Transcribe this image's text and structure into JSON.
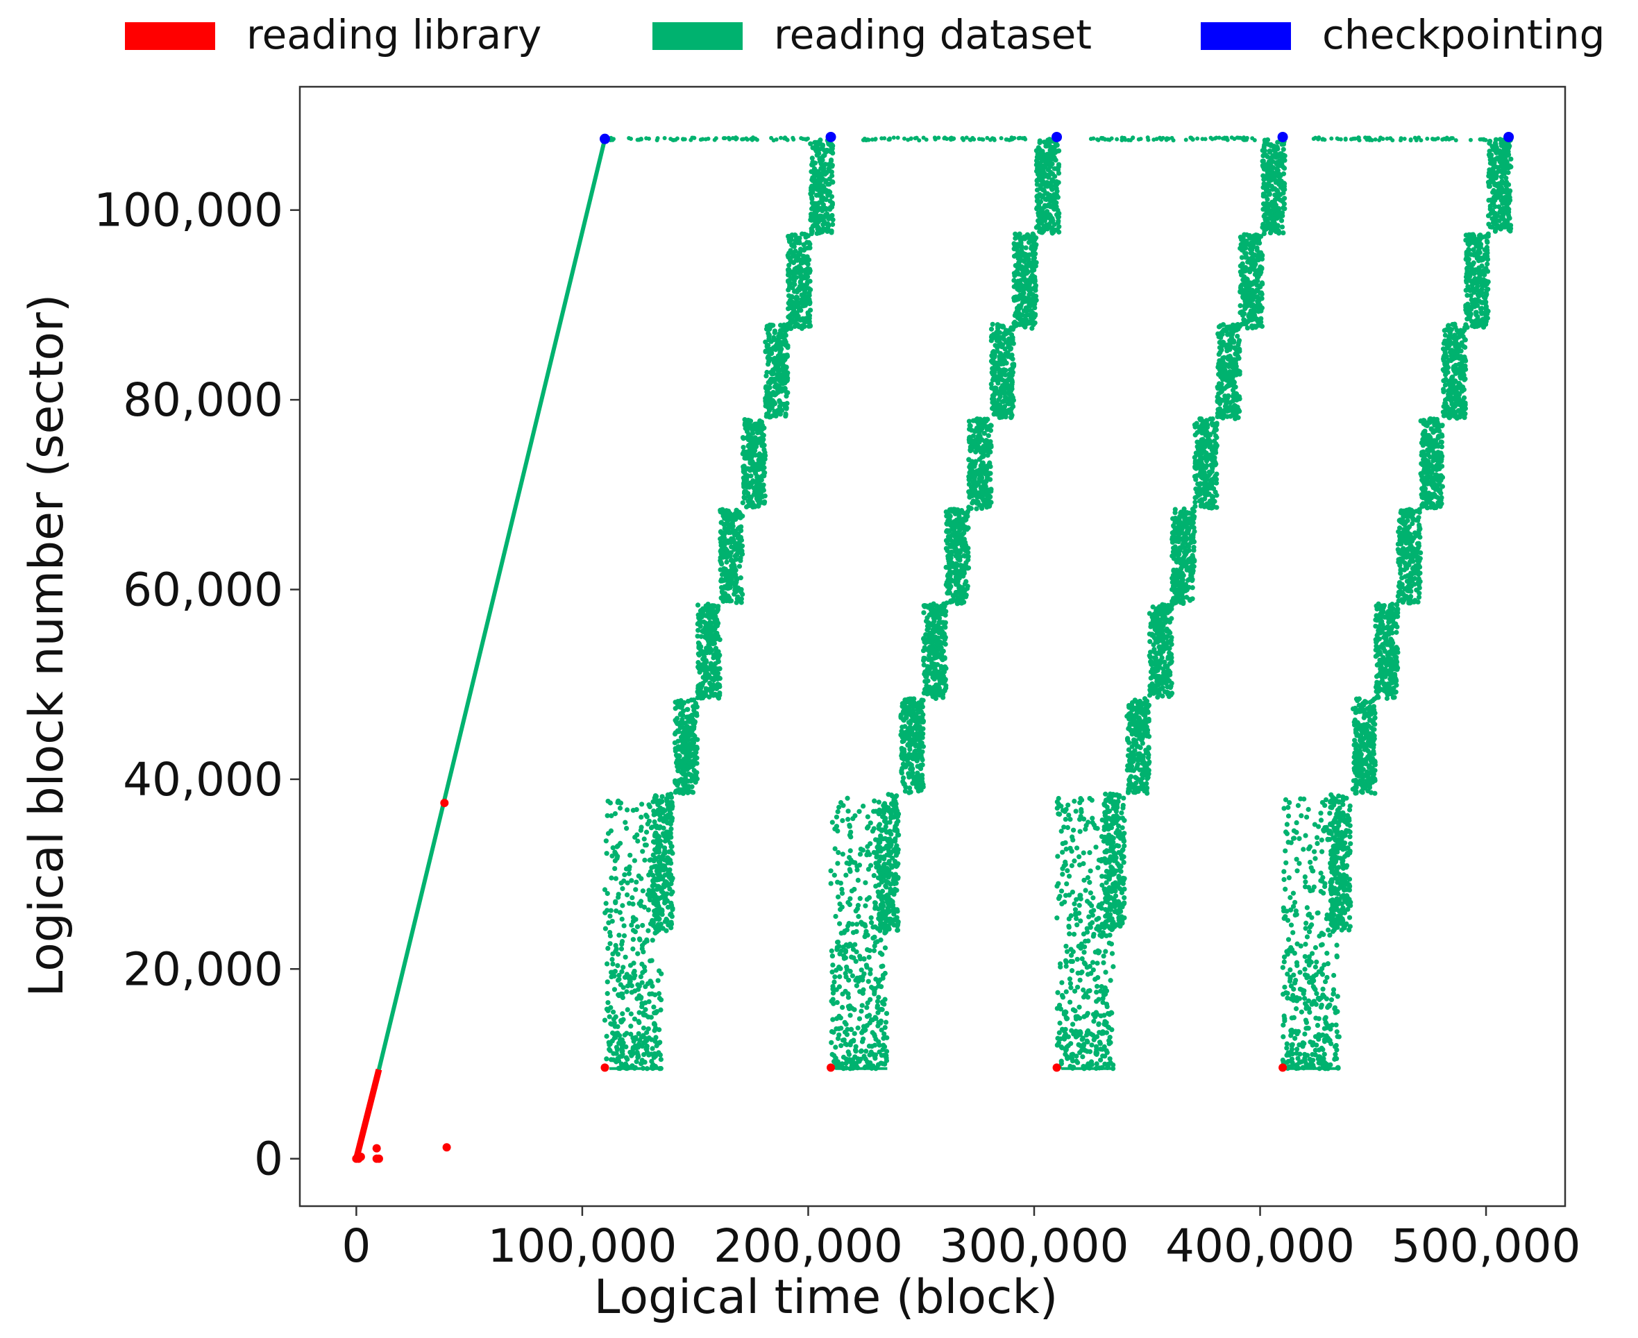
{
  "chart_data": {
    "type": "scatter",
    "title": "",
    "xlabel": "Logical time (block)",
    "ylabel": "Logical block number (sector)",
    "xlim": [
      -25000,
      535000
    ],
    "ylim": [
      -5000,
      113000
    ],
    "x_ticks": [
      0,
      100000,
      200000,
      300000,
      400000,
      500000
    ],
    "x_tick_labels": [
      "0",
      "100,000",
      "200,000",
      "300,000",
      "400,000",
      "500,000"
    ],
    "y_ticks": [
      0,
      20000,
      40000,
      60000,
      80000,
      100000
    ],
    "y_tick_labels": [
      "0",
      "20,000",
      "40,000",
      "60,000",
      "80,000",
      "100,000"
    ],
    "grid": false,
    "legend": {
      "placement": "top",
      "ncol": 3
    },
    "colors": {
      "reading library": "#ff0000",
      "reading dataset": "#00b26f",
      "checkpointing": "#0000ff"
    },
    "series": [
      {
        "name": "reading library",
        "color": "#ff0000",
        "segments": [
          {
            "x": [
              0,
              10000
            ],
            "y": [
              0,
              9400
            ]
          }
        ],
        "points": [
          [
            0,
            0
          ],
          [
            1000,
            0
          ],
          [
            2000,
            200
          ],
          [
            9000,
            0
          ],
          [
            10000,
            0
          ],
          [
            9000,
            1100
          ],
          [
            40000,
            1200
          ],
          [
            39000,
            37500
          ],
          [
            110000,
            9600
          ],
          [
            210000,
            9600
          ],
          [
            310000,
            9600
          ],
          [
            410000,
            9600
          ]
        ]
      },
      {
        "name": "reading dataset",
        "color": "#00b26f",
        "segments": [
          {
            "x": [
              10000,
              110000
            ],
            "y": [
              9400,
              107500
            ]
          }
        ],
        "cycles": [
          {
            "start": 110000,
            "steps": [
              {
                "x": [
                  131000,
                  140000
                ],
                "y": [
                  24000,
                  38500
                ]
              },
              {
                "x": [
                  141000,
                  151000
                ],
                "y": [
                  38500,
                  48500
                ]
              },
              {
                "x": [
                  151000,
                  161000
                ],
                "y": [
                  48500,
                  58500
                ]
              },
              {
                "x": [
                  161000,
                  171000
                ],
                "y": [
                  58500,
                  68500
                ]
              },
              {
                "x": [
                  171000,
                  181000
                ],
                "y": [
                  68500,
                  78000
                ]
              },
              {
                "x": [
                  181000,
                  191000
                ],
                "y": [
                  78000,
                  88000
                ]
              },
              {
                "x": [
                  191000,
                  201000
                ],
                "y": [
                  87500,
                  97500
                ]
              },
              {
                "x": [
                  201000,
                  211000
                ],
                "y": [
                  97500,
                  107500
                ]
              }
            ],
            "scatter": {
              "x": [
                110000,
                135000
              ],
              "y": [
                9500,
                38000
              ]
            },
            "top_row": {
              "x": [
                112000,
                200000
              ],
              "y": 107500
            }
          },
          {
            "start": 210000,
            "steps": [
              {
                "x": [
                  231000,
                  240000
                ],
                "y": [
                  24000,
                  38500
                ]
              },
              {
                "x": [
                  241000,
                  251000
                ],
                "y": [
                  38500,
                  48500
                ]
              },
              {
                "x": [
                  251000,
                  261000
                ],
                "y": [
                  48500,
                  58500
                ]
              },
              {
                "x": [
                  261000,
                  271000
                ],
                "y": [
                  58500,
                  68500
                ]
              },
              {
                "x": [
                  271000,
                  281000
                ],
                "y": [
                  68500,
                  78000
                ]
              },
              {
                "x": [
                  281000,
                  291000
                ],
                "y": [
                  78000,
                  88000
                ]
              },
              {
                "x": [
                  291000,
                  301000
                ],
                "y": [
                  87500,
                  97500
                ]
              },
              {
                "x": [
                  301000,
                  311000
                ],
                "y": [
                  97500,
                  107500
                ]
              }
            ],
            "scatter": {
              "x": [
                210000,
                235000
              ],
              "y": [
                9500,
                38000
              ]
            },
            "top_row": {
              "x": [
                222000,
                300000
              ],
              "y": 107500
            }
          },
          {
            "start": 310000,
            "steps": [
              {
                "x": [
                  331000,
                  340000
                ],
                "y": [
                  24000,
                  38500
                ]
              },
              {
                "x": [
                  341000,
                  351000
                ],
                "y": [
                  38500,
                  48500
                ]
              },
              {
                "x": [
                  351000,
                  361000
                ],
                "y": [
                  48500,
                  58500
                ]
              },
              {
                "x": [
                  361000,
                  371000
                ],
                "y": [
                  58500,
                  68500
                ]
              },
              {
                "x": [
                  371000,
                  381000
                ],
                "y": [
                  68500,
                  78000
                ]
              },
              {
                "x": [
                  381000,
                  391000
                ],
                "y": [
                  78000,
                  88000
                ]
              },
              {
                "x": [
                  391000,
                  401000
                ],
                "y": [
                  87500,
                  97500
                ]
              },
              {
                "x": [
                  401000,
                  411000
                ],
                "y": [
                  97500,
                  107500
                ]
              }
            ],
            "scatter": {
              "x": [
                310000,
                335000
              ],
              "y": [
                9500,
                38000
              ]
            },
            "top_row": {
              "x": [
                322000,
                400000
              ],
              "y": 107500
            }
          },
          {
            "start": 410000,
            "steps": [
              {
                "x": [
                  431000,
                  440000
                ],
                "y": [
                  24000,
                  38500
                ]
              },
              {
                "x": [
                  441000,
                  451000
                ],
                "y": [
                  38500,
                  48500
                ]
              },
              {
                "x": [
                  451000,
                  461000
                ],
                "y": [
                  48500,
                  58500
                ]
              },
              {
                "x": [
                  461000,
                  471000
                ],
                "y": [
                  58500,
                  68500
                ]
              },
              {
                "x": [
                  471000,
                  481000
                ],
                "y": [
                  68500,
                  78000
                ]
              },
              {
                "x": [
                  481000,
                  491000
                ],
                "y": [
                  78000,
                  88000
                ]
              },
              {
                "x": [
                  491000,
                  501000
                ],
                "y": [
                  87500,
                  97500
                ]
              },
              {
                "x": [
                  501000,
                  511000
                ],
                "y": [
                  97500,
                  107500
                ]
              }
            ],
            "scatter": {
              "x": [
                410000,
                435000
              ],
              "y": [
                9500,
                38000
              ]
            },
            "top_row": {
              "x": [
                422000,
                500000
              ],
              "y": 107500
            }
          }
        ]
      },
      {
        "name": "checkpointing",
        "color": "#0000ff",
        "points": [
          [
            110000,
            107500
          ],
          [
            210000,
            107700
          ],
          [
            310000,
            107700
          ],
          [
            410000,
            107700
          ],
          [
            510000,
            107700
          ]
        ]
      }
    ]
  }
}
